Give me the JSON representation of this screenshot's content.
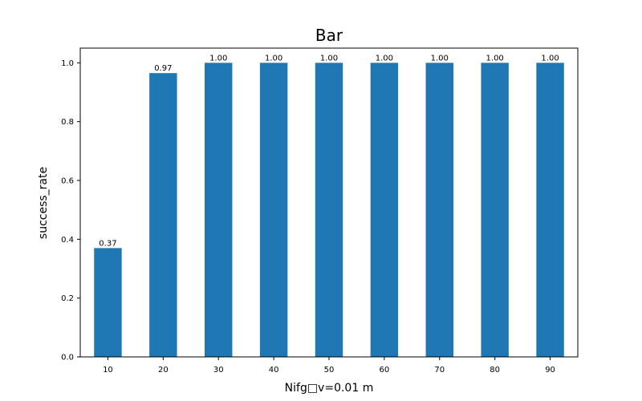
{
  "chart_data": {
    "type": "bar",
    "title": "Bar",
    "xlabel": "Nifg□v=0.01 m",
    "ylabel": "success_rate",
    "categories": [
      "10",
      "20",
      "30",
      "40",
      "50",
      "60",
      "70",
      "80",
      "90"
    ],
    "values": [
      0.37,
      0.965,
      1.0,
      1.0,
      1.0,
      1.0,
      1.0,
      1.0,
      1.0
    ],
    "data_labels": [
      "0.37",
      "0.97",
      "1.00",
      "1.00",
      "1.00",
      "1.00",
      "1.00",
      "1.00",
      "1.00"
    ],
    "yticks": [
      "0.0",
      "0.2",
      "0.4",
      "0.6",
      "0.8",
      "1.0"
    ],
    "ylim": [
      0,
      1.05
    ],
    "grid": false,
    "bar_color": "#1f77b4"
  }
}
